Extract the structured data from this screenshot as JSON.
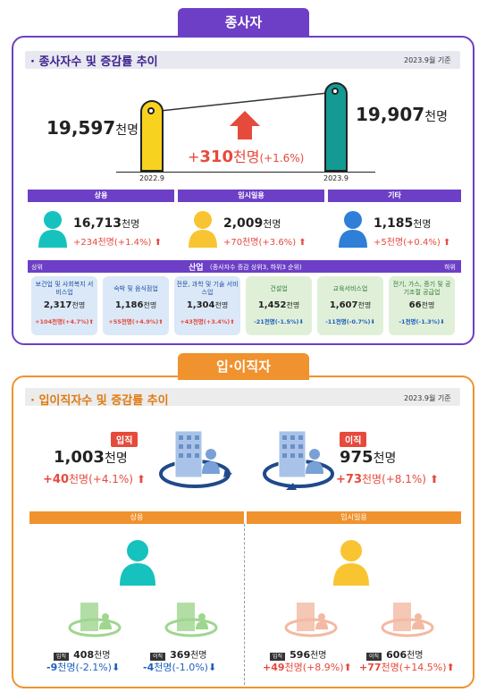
{
  "section1": {
    "tag": "종사자",
    "title": "· 종사자수 및 증감률 추이",
    "as_of": "2023.9월 기준",
    "prev_value": "19,597",
    "prev_unit": "천명",
    "prev_label": "2022.9",
    "curr_value": "19,907",
    "curr_unit": "천명",
    "curr_label": "2023.9",
    "change_sign": "+",
    "change_value": "310",
    "change_unit": "천명",
    "change_pct": "(+1.6%)",
    "categories": [
      {
        "name": "상용",
        "value": "16,713",
        "unit": "천명",
        "change": "+234천명(+1.4%)",
        "color": "#16c2bd"
      },
      {
        "name": "임시일용",
        "value": "2,009",
        "unit": "천명",
        "change": "+70천명(+3.6%)",
        "color": "#f9c431"
      },
      {
        "name": "기타",
        "value": "1,185",
        "unit": "천명",
        "change": "+5천명(+0.4%)",
        "color": "#2f7fd9"
      }
    ],
    "industry_band": {
      "left": "상위",
      "title": "산업",
      "note": "(종사자수 증감 상위3, 하위3 순위)",
      "right": "하위"
    },
    "industries": [
      {
        "name": "보건업 및 사회복지 서비스업",
        "value": "2,317",
        "unit": "천명",
        "change": "+104천명(+4.7%)",
        "dir": "up",
        "style": "blue"
      },
      {
        "name": "숙박 및 음식점업",
        "value": "1,186",
        "unit": "천명",
        "change": "+55천명(+4.9%)",
        "dir": "up",
        "style": "blue"
      },
      {
        "name": "전문, 과학 및 기술 서비스업",
        "value": "1,304",
        "unit": "천명",
        "change": "+43천명(+3.4%)",
        "dir": "up",
        "style": "blue"
      },
      {
        "name": "건설업",
        "value": "1,452",
        "unit": "천명",
        "change": "-21천명(-1.5%)",
        "dir": "down",
        "style": "green"
      },
      {
        "name": "교육서비스업",
        "value": "1,607",
        "unit": "천명",
        "change": "-11천명(-0.7%)",
        "dir": "down",
        "style": "green"
      },
      {
        "name": "전기, 가스, 증기 및 공기조절 공급업",
        "value": "66",
        "unit": "천명",
        "change": "-1천명(-1.3%)",
        "dir": "down",
        "style": "green"
      }
    ]
  },
  "section2": {
    "tag": "입·이직자",
    "title": "· 입이직자수 및 증감률 추이",
    "as_of": "2023.9월 기준",
    "in": {
      "tag": "입직",
      "value": "1,003",
      "unit": "천명",
      "chg_num": "+40",
      "chg_rest": "천명(+4.1%)"
    },
    "out": {
      "tag": "이직",
      "value": "975",
      "unit": "천명",
      "chg_num": "+73",
      "chg_rest": "천명(+8.1%)"
    },
    "groups": [
      {
        "name": "상용",
        "person_color": "#16c2bd",
        "in": {
          "tag": "입직",
          "value": "408",
          "unit": "천명",
          "chg_num": "-9",
          "chg_rest": "천명(-2.1%)",
          "dir": "down"
        },
        "out": {
          "tag": "이직",
          "value": "369",
          "unit": "천명",
          "chg_num": "-4",
          "chg_rest": "천명(-1.0%)",
          "dir": "down"
        }
      },
      {
        "name": "임시일용",
        "person_color": "#f9c431",
        "in": {
          "tag": "입직",
          "value": "596",
          "unit": "천명",
          "chg_num": "+49",
          "chg_rest": "천명(+8.9%)",
          "dir": "up"
        },
        "out": {
          "tag": "이직",
          "value": "606",
          "unit": "천명",
          "chg_num": "+77",
          "chg_rest": "천명(+14.5%)",
          "dir": "up"
        }
      }
    ]
  },
  "colors": {
    "purple": "#6c3fc6",
    "orange": "#f0922e",
    "up": "#e64a3c",
    "down": "#1e5fbf"
  }
}
